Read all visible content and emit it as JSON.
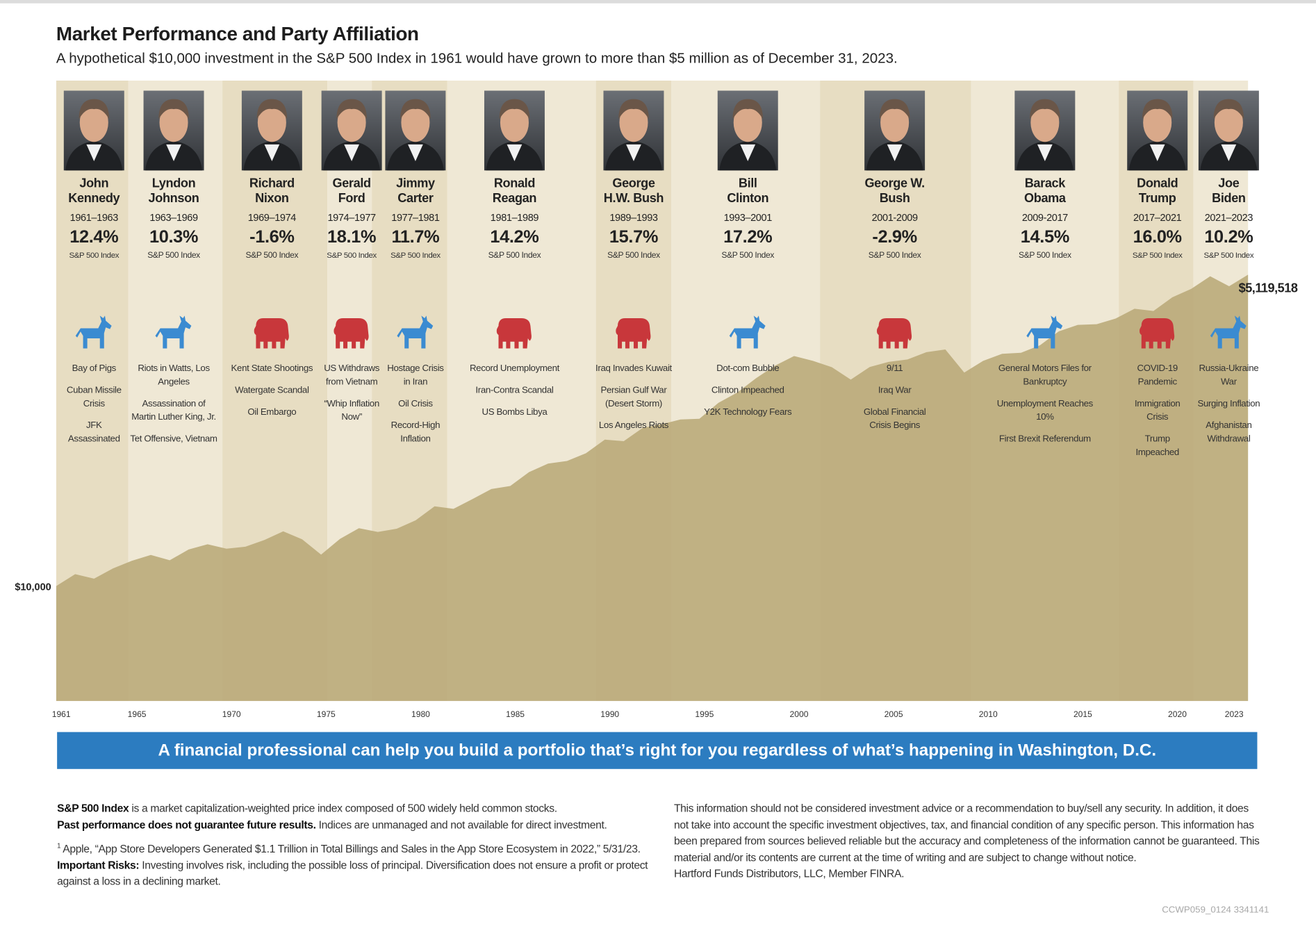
{
  "header": {
    "title": "Market Performance and Party Affiliation",
    "subtitle": "A hypothetical $10,000 investment in the S&P 500 Index in 1961 would have grown to more than $5 million as of December 31, 2023."
  },
  "chart_data": {
    "type": "area",
    "x": [
      1961,
      1962,
      1963,
      1964,
      1965,
      1966,
      1967,
      1968,
      1969,
      1970,
      1971,
      1972,
      1973,
      1974,
      1975,
      1976,
      1977,
      1978,
      1979,
      1980,
      1981,
      1982,
      1983,
      1984,
      1985,
      1986,
      1987,
      1988,
      1989,
      1990,
      1991,
      1992,
      1993,
      1994,
      1995,
      1996,
      1997,
      1998,
      1999,
      2000,
      2001,
      2002,
      2003,
      2004,
      2005,
      2006,
      2007,
      2008,
      2009,
      2010,
      2011,
      2012,
      2013,
      2014,
      2015,
      2016,
      2017,
      2018,
      2019,
      2020,
      2021,
      2022,
      2023,
      2024
    ],
    "values": [
      10000,
      12700,
      11600,
      14240,
      16590,
      18660,
      16780,
      20800,
      23110,
      21150,
      22000,
      25140,
      29920,
      25520,
      18760,
      25740,
      31860,
      29570,
      31520,
      37320,
      49410,
      46990,
      57040,
      69880,
      74280,
      98200,
      116370,
      122420,
      142990,
      188030,
      182200,
      237770,
      255840,
      281680,
      285340,
      392630,
      482930,
      644230,
      828480,
      1002460,
      911240,
      802800,
      625380,
      804860,
      892590,
      936330,
      1084270,
      1143900,
      720660,
      911630,
      1049290,
      1071320,
      1242730,
      1645380,
      1870800,
      1897000,
      2124640,
      2587810,
      2473950,
      3253240,
      3851840,
      4957320,
      4060050,
      5119518
    ],
    "color": "#b9a978",
    "xlim": [
      1961,
      2024
    ],
    "ylim": [
      1000,
      250000000
    ],
    "log_scale": true,
    "xticks": [
      1961,
      1965,
      1970,
      1975,
      1980,
      1985,
      1990,
      1995,
      2000,
      2005,
      2010,
      2015,
      2020,
      2023
    ],
    "annotations": [
      {
        "value": 10000,
        "label": "$10,000"
      },
      {
        "value": 5119518,
        "label": "$5,119,518"
      }
    ]
  },
  "icon_colors": {
    "donkey": "#3b8bd1",
    "elephant": "#c8373b"
  },
  "presidents": [
    {
      "name": [
        "John",
        "Kennedy"
      ],
      "years": "1961–1963",
      "return": "12.4%",
      "index_label": "S&P 500 Index",
      "icon": "donkey",
      "events": [
        "Bay of Pigs",
        "Cuban Missile Crisis",
        "JFK Assassinated"
      ]
    },
    {
      "name": [
        "Lyndon",
        "Johnson"
      ],
      "years": "1963–1969",
      "return": "10.3%",
      "index_label": "S&P 500 Index",
      "icon": "donkey",
      "events": [
        "Riots in Watts, Los Angeles",
        "Assassination of Martin Luther King, Jr.",
        "Tet Offensive, Vietnam"
      ]
    },
    {
      "name": [
        "Richard",
        "Nixon"
      ],
      "years": "1969–1974",
      "return": "-1.6%",
      "index_label": "S&P 500 Index",
      "icon": "elephant",
      "events": [
        "Kent State Shootings",
        "Watergate Scandal",
        "Oil Embargo"
      ]
    },
    {
      "name": [
        "Gerald",
        "Ford"
      ],
      "years": "1974–1977",
      "return": "18.1%",
      "index_label": "S&P 500 Index",
      "icon": "elephant",
      "events": [
        "US Withdraws from Vietnam",
        "“Whip Inflation Now”"
      ]
    },
    {
      "name": [
        "Jimmy",
        "Carter"
      ],
      "years": "1977–1981",
      "return": "11.7%",
      "index_label": "S&P 500 Index",
      "icon": "donkey",
      "events": [
        "Hostage Crisis in Iran",
        "Oil Crisis",
        "Record-High Inflation"
      ]
    },
    {
      "name": [
        "Ronald",
        "Reagan"
      ],
      "years": "1981–1989",
      "return": "14.2%",
      "index_label": "S&P 500 Index",
      "icon": "elephant",
      "events": [
        "Record Unemployment",
        "Iran-Contra Scandal",
        "US Bombs Libya"
      ]
    },
    {
      "name": [
        "George",
        "H.W. Bush"
      ],
      "years": "1989–1993",
      "return": "15.7%",
      "index_label": "S&P 500 Index",
      "icon": "elephant",
      "events": [
        "Iraq Invades Kuwait",
        "Persian Gulf War (Desert Storm)",
        "Los Angeles Riots"
      ]
    },
    {
      "name": [
        "Bill",
        "Clinton"
      ],
      "years": "1993–2001",
      "return": "17.2%",
      "index_label": "S&P 500 Index",
      "icon": "donkey",
      "events": [
        "Dot-com Bubble",
        "Clinton Impeached",
        "Y2K Technology Fears"
      ]
    },
    {
      "name": [
        "George W.",
        "Bush"
      ],
      "years": "2001-2009",
      "return": "-2.9%",
      "index_label": "S&P 500 Index",
      "icon": "elephant",
      "events": [
        "9/11",
        "Iraq War",
        "Global Financial Crisis Begins"
      ]
    },
    {
      "name": [
        "Barack",
        "Obama"
      ],
      "years": "2009-2017",
      "return": "14.5%",
      "index_label": "S&P 500 Index",
      "icon": "donkey",
      "events": [
        "General Motors Files for Bankruptcy",
        "Unemployment Reaches 10%",
        "First Brexit Referendum"
      ]
    },
    {
      "name": [
        "Donald",
        "Trump"
      ],
      "years": "2017–2021",
      "return": "16.0%",
      "index_label": "S&P 500 Index",
      "icon": "elephant",
      "events": [
        "COVID-19 Pandemic",
        "Immigration Crisis",
        "Trump Impeached"
      ]
    },
    {
      "name": [
        "Joe",
        "Biden"
      ],
      "years": "2021–2023",
      "return": "10.2%",
      "index_label": "S&P 500 Index",
      "icon": "donkey",
      "events": [
        "Russia-Ukraine War",
        "Surging Inflation",
        "Afghanistan Withdrawal"
      ]
    }
  ],
  "banner": "A financial professional can help you build a portfolio that’s right for you regardless of what’s happening in Washington, D.C.",
  "footer": {
    "left": [
      {
        "lead": "S&P 500 Index",
        "text": "is a market capitalization-weighted price index composed of 500 widely held common stocks."
      },
      {
        "lead": "Past performance does not guarantee future results.",
        "text": "Indices are unmanaged and not available for direct investment."
      },
      {
        "note": "1",
        "text": "Apple, “App Store Developers Generated $1.1 Trillion in Total Billings and Sales in the App Store Ecosystem in 2022,” 5/31/23."
      },
      {
        "lead": "Important Risks:",
        "text": "Investing involves risk, including the possible loss of principal. Diversification does not ensure a profit or protect against a loss in a declining market."
      }
    ],
    "right": [
      "This information should not be considered investment advice or a recommendation to buy/sell any security. In addition, it does not take into account the specific investment objectives, tax, and financial condition of any specific person. This information has been prepared from sources believed reliable but the accuracy and completeness of the information cannot be guaranteed. This material and/or its contents are current at the time of writing and are subject to change without notice.",
      "Hartford Funds Distributors, LLC, Member FINRA."
    ],
    "code": "CCWP059_0124 3341141"
  }
}
